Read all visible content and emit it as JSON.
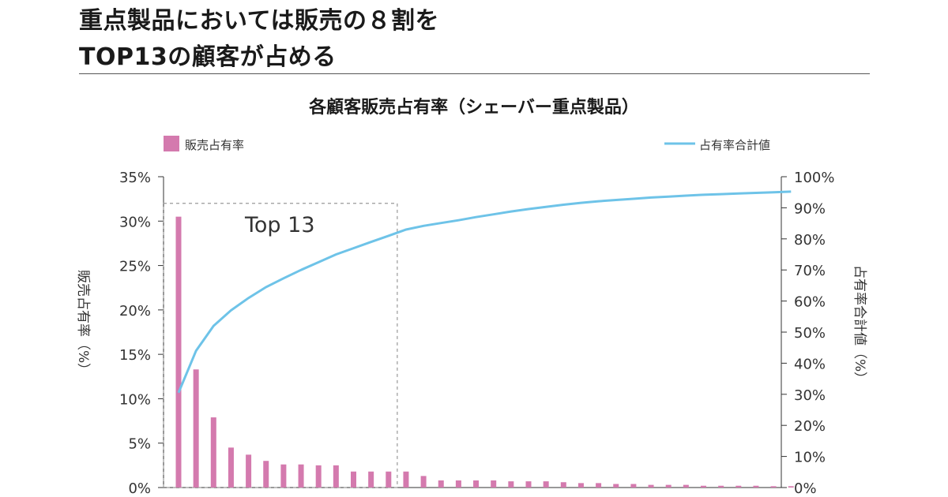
{
  "headline": {
    "line1": "重点製品においては販売の８割を",
    "line2": "TOP13の顧客が占める"
  },
  "chart_data": {
    "type": "bar+line",
    "title": "各顧客販売占有率（シェーバー重点製品）",
    "legend": {
      "bar": "販売占有率",
      "line": "占有率合計値",
      "placement": "top"
    },
    "left_axis": {
      "label": "販売占有率（%）",
      "ylim": [
        0,
        35
      ],
      "ticks": [
        "0%",
        "5%",
        "10%",
        "15%",
        "20%",
        "25%",
        "30%",
        "35%"
      ],
      "tick_values": [
        0,
        5,
        10,
        15,
        20,
        25,
        30,
        35
      ]
    },
    "right_axis": {
      "label": "占有率合計値（%）",
      "ylim": [
        0,
        100
      ],
      "ticks": [
        "0%",
        "10%",
        "20%",
        "30%",
        "40%",
        "50%",
        "60%",
        "70%",
        "80%",
        "90%",
        "100%"
      ],
      "tick_values": [
        0,
        10,
        20,
        30,
        40,
        50,
        60,
        70,
        80,
        90,
        100
      ]
    },
    "bar_values": [
      30.5,
      13.3,
      7.9,
      4.5,
      3.7,
      3.0,
      2.6,
      2.6,
      2.5,
      2.5,
      1.8,
      1.8,
      1.8,
      1.8,
      1.3,
      0.8,
      0.8,
      0.8,
      0.8,
      0.7,
      0.7,
      0.7,
      0.6,
      0.5,
      0.5,
      0.4,
      0.4,
      0.3,
      0.3,
      0.3,
      0.2,
      0.2,
      0.2,
      0.2,
      0.15,
      0.15
    ],
    "cumulative_values": [
      30.5,
      44,
      52,
      57,
      61,
      64.5,
      67.3,
      70,
      72.5,
      75,
      77,
      79,
      81,
      83,
      84.2,
      85.1,
      86,
      87,
      87.9,
      88.8,
      89.6,
      90.3,
      91,
      91.6,
      92.1,
      92.5,
      92.9,
      93.3,
      93.6,
      93.9,
      94.2,
      94.4,
      94.6,
      94.8,
      95,
      95.2
    ],
    "annotation": {
      "label": "Top 13",
      "covers_customers": 13
    },
    "colors": {
      "bar": "#d47aae",
      "line": "#6ec3e8",
      "box": "#999999"
    }
  }
}
